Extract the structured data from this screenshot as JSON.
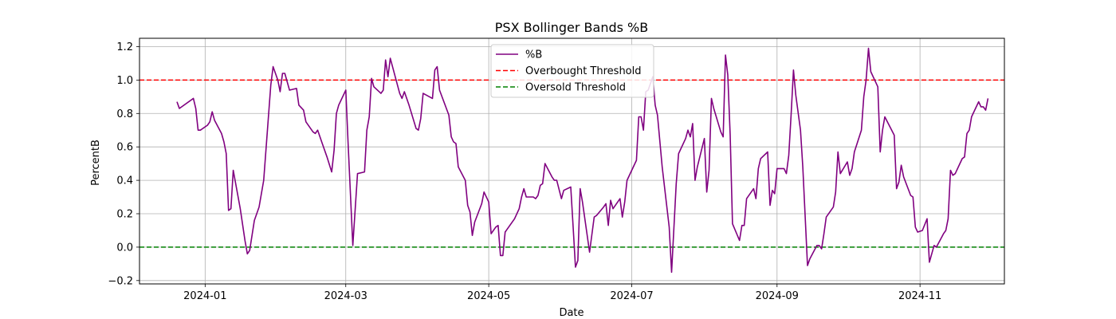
{
  "chart_data": {
    "type": "line",
    "title": "PSX Bollinger Bands %B",
    "xlabel": "Date",
    "ylabel": "PercentB",
    "xlim": [
      "2023-12-04",
      "2024-12-07"
    ],
    "ylim": [
      -0.22,
      1.25
    ],
    "grid": true,
    "legend_position": "top-center",
    "x_ticks": [
      "2024-01",
      "2024-03",
      "2024-05",
      "2024-07",
      "2024-09",
      "2024-11"
    ],
    "y_ticks": [
      -0.2,
      0.0,
      0.2,
      0.4,
      0.6,
      0.8,
      1.0,
      1.2
    ],
    "y_tick_labels": [
      "−0.2",
      "0.0",
      "0.2",
      "0.4",
      "0.6",
      "0.8",
      "1.0",
      "1.2"
    ],
    "series": [
      {
        "name": "%B",
        "color": "#800080",
        "style": "solid",
        "points": [
          [
            "2023-12-20",
            0.87
          ],
          [
            "2023-12-21",
            0.83
          ],
          [
            "2023-12-27",
            0.89
          ],
          [
            "2023-12-28",
            0.83
          ],
          [
            "2023-12-29",
            0.7
          ],
          [
            "2023-12-30",
            0.7
          ],
          [
            "2024-01-02",
            0.73
          ],
          [
            "2024-01-03",
            0.75
          ],
          [
            "2024-01-04",
            0.81
          ],
          [
            "2024-01-05",
            0.76
          ],
          [
            "2024-01-08",
            0.68
          ],
          [
            "2024-01-09",
            0.63
          ],
          [
            "2024-01-10",
            0.56
          ],
          [
            "2024-01-11",
            0.22
          ],
          [
            "2024-01-12",
            0.23
          ],
          [
            "2024-01-13",
            0.46
          ],
          [
            "2024-01-16",
            0.23
          ],
          [
            "2024-01-18",
            0.04
          ],
          [
            "2024-01-19",
            -0.04
          ],
          [
            "2024-01-20",
            -0.02
          ],
          [
            "2024-01-22",
            0.16
          ],
          [
            "2024-01-24",
            0.24
          ],
          [
            "2024-01-26",
            0.4
          ],
          [
            "2024-01-29",
            0.97
          ],
          [
            "2024-01-30",
            1.08
          ],
          [
            "2024-02-01",
            1.0
          ],
          [
            "2024-02-02",
            0.93
          ],
          [
            "2024-02-03",
            1.04
          ],
          [
            "2024-02-04",
            1.04
          ],
          [
            "2024-02-06",
            0.94
          ],
          [
            "2024-02-09",
            0.95
          ],
          [
            "2024-02-10",
            0.85
          ],
          [
            "2024-02-12",
            0.82
          ],
          [
            "2024-02-13",
            0.75
          ],
          [
            "2024-02-16",
            0.69
          ],
          [
            "2024-02-17",
            0.68
          ],
          [
            "2024-02-18",
            0.7
          ],
          [
            "2024-02-20",
            0.62
          ],
          [
            "2024-02-22",
            0.54
          ],
          [
            "2024-02-24",
            0.45
          ],
          [
            "2024-02-25",
            0.58
          ],
          [
            "2024-02-26",
            0.8
          ],
          [
            "2024-02-27",
            0.85
          ],
          [
            "2024-03-01",
            0.94
          ],
          [
            "2024-03-02",
            0.62
          ],
          [
            "2024-03-04",
            0.01
          ],
          [
            "2024-03-06",
            0.44
          ],
          [
            "2024-03-09",
            0.45
          ],
          [
            "2024-03-10",
            0.7
          ],
          [
            "2024-03-11",
            0.78
          ],
          [
            "2024-03-12",
            1.01
          ],
          [
            "2024-03-13",
            0.96
          ],
          [
            "2024-03-16",
            0.92
          ],
          [
            "2024-03-17",
            0.94
          ],
          [
            "2024-03-18",
            1.12
          ],
          [
            "2024-03-19",
            1.02
          ],
          [
            "2024-03-20",
            1.13
          ],
          [
            "2024-03-24",
            0.92
          ],
          [
            "2024-03-25",
            0.89
          ],
          [
            "2024-03-26",
            0.93
          ],
          [
            "2024-03-28",
            0.85
          ],
          [
            "2024-03-31",
            0.71
          ],
          [
            "2024-04-01",
            0.7
          ],
          [
            "2024-04-02",
            0.77
          ],
          [
            "2024-04-03",
            0.92
          ],
          [
            "2024-04-07",
            0.89
          ],
          [
            "2024-04-08",
            1.06
          ],
          [
            "2024-04-09",
            1.08
          ],
          [
            "2024-04-10",
            0.94
          ],
          [
            "2024-04-14",
            0.79
          ],
          [
            "2024-04-15",
            0.66
          ],
          [
            "2024-04-16",
            0.63
          ],
          [
            "2024-04-17",
            0.62
          ],
          [
            "2024-04-18",
            0.48
          ],
          [
            "2024-04-21",
            0.4
          ],
          [
            "2024-04-22",
            0.25
          ],
          [
            "2024-04-23",
            0.21
          ],
          [
            "2024-04-24",
            0.07
          ],
          [
            "2024-04-25",
            0.15
          ],
          [
            "2024-04-28",
            0.26
          ],
          [
            "2024-04-29",
            0.33
          ],
          [
            "2024-05-01",
            0.27
          ],
          [
            "2024-05-02",
            0.08
          ],
          [
            "2024-05-04",
            0.12
          ],
          [
            "2024-05-05",
            0.13
          ],
          [
            "2024-05-06",
            -0.05
          ],
          [
            "2024-05-07",
            -0.05
          ],
          [
            "2024-05-08",
            0.09
          ],
          [
            "2024-05-12",
            0.17
          ],
          [
            "2024-05-14",
            0.23
          ],
          [
            "2024-05-15",
            0.3
          ],
          [
            "2024-05-16",
            0.35
          ],
          [
            "2024-05-17",
            0.3
          ],
          [
            "2024-05-20",
            0.3
          ],
          [
            "2024-05-21",
            0.29
          ],
          [
            "2024-05-22",
            0.31
          ],
          [
            "2024-05-23",
            0.37
          ],
          [
            "2024-05-24",
            0.38
          ],
          [
            "2024-05-25",
            0.5
          ],
          [
            "2024-05-28",
            0.42
          ],
          [
            "2024-05-29",
            0.4
          ],
          [
            "2024-05-30",
            0.4
          ],
          [
            "2024-06-01",
            0.29
          ],
          [
            "2024-06-02",
            0.34
          ],
          [
            "2024-06-05",
            0.36
          ],
          [
            "2024-06-06",
            0.12
          ],
          [
            "2024-06-07",
            -0.12
          ],
          [
            "2024-06-08",
            -0.08
          ],
          [
            "2024-06-09",
            0.35
          ],
          [
            "2024-06-10",
            0.27
          ],
          [
            "2024-06-13",
            -0.03
          ],
          [
            "2024-06-15",
            0.18
          ],
          [
            "2024-06-16",
            0.19
          ],
          [
            "2024-06-19",
            0.24
          ],
          [
            "2024-06-20",
            0.26
          ],
          [
            "2024-06-21",
            0.13
          ],
          [
            "2024-06-22",
            0.28
          ],
          [
            "2024-06-23",
            0.23
          ],
          [
            "2024-06-26",
            0.29
          ],
          [
            "2024-06-27",
            0.18
          ],
          [
            "2024-06-28",
            0.27
          ],
          [
            "2024-06-29",
            0.4
          ],
          [
            "2024-07-03",
            0.52
          ],
          [
            "2024-07-04",
            0.78
          ],
          [
            "2024-07-05",
            0.78
          ],
          [
            "2024-07-06",
            0.7
          ],
          [
            "2024-07-07",
            0.93
          ],
          [
            "2024-07-08",
            0.94
          ],
          [
            "2024-07-10",
            1.02
          ],
          [
            "2024-07-11",
            0.85
          ],
          [
            "2024-07-12",
            0.79
          ],
          [
            "2024-07-14",
            0.48
          ],
          [
            "2024-07-17",
            0.12
          ],
          [
            "2024-07-18",
            -0.15
          ],
          [
            "2024-07-20",
            0.38
          ],
          [
            "2024-07-21",
            0.56
          ],
          [
            "2024-07-24",
            0.65
          ],
          [
            "2024-07-25",
            0.7
          ],
          [
            "2024-07-26",
            0.66
          ],
          [
            "2024-07-27",
            0.74
          ],
          [
            "2024-07-28",
            0.4
          ],
          [
            "2024-07-29",
            0.48
          ],
          [
            "2024-08-01",
            0.65
          ],
          [
            "2024-08-02",
            0.33
          ],
          [
            "2024-08-03",
            0.46
          ],
          [
            "2024-08-04",
            0.89
          ],
          [
            "2024-08-05",
            0.83
          ],
          [
            "2024-08-08",
            0.69
          ],
          [
            "2024-08-09",
            0.66
          ],
          [
            "2024-08-10",
            1.15
          ],
          [
            "2024-08-11",
            1.03
          ],
          [
            "2024-08-12",
            0.67
          ],
          [
            "2024-08-13",
            0.14
          ],
          [
            "2024-08-16",
            0.04
          ],
          [
            "2024-08-17",
            0.13
          ],
          [
            "2024-08-18",
            0.13
          ],
          [
            "2024-08-19",
            0.29
          ],
          [
            "2024-08-22",
            0.35
          ],
          [
            "2024-08-23",
            0.29
          ],
          [
            "2024-08-24",
            0.47
          ],
          [
            "2024-08-25",
            0.53
          ],
          [
            "2024-08-28",
            0.57
          ],
          [
            "2024-08-29",
            0.25
          ],
          [
            "2024-08-30",
            0.34
          ],
          [
            "2024-08-31",
            0.32
          ],
          [
            "2024-09-01",
            0.47
          ],
          [
            "2024-09-04",
            0.47
          ],
          [
            "2024-09-05",
            0.44
          ],
          [
            "2024-09-06",
            0.55
          ],
          [
            "2024-09-07",
            0.79
          ],
          [
            "2024-09-08",
            1.06
          ],
          [
            "2024-09-09",
            0.91
          ],
          [
            "2024-09-11",
            0.7
          ],
          [
            "2024-09-12",
            0.48
          ],
          [
            "2024-09-14",
            -0.11
          ],
          [
            "2024-09-15",
            -0.07
          ],
          [
            "2024-09-18",
            0.01
          ],
          [
            "2024-09-19",
            0.01
          ],
          [
            "2024-09-20",
            -0.01
          ],
          [
            "2024-09-21",
            0.08
          ],
          [
            "2024-09-22",
            0.18
          ],
          [
            "2024-09-25",
            0.24
          ],
          [
            "2024-09-26",
            0.33
          ],
          [
            "2024-09-27",
            0.57
          ],
          [
            "2024-09-28",
            0.44
          ],
          [
            "2024-10-01",
            0.51
          ],
          [
            "2024-10-02",
            0.43
          ],
          [
            "2024-10-03",
            0.47
          ],
          [
            "2024-10-04",
            0.57
          ],
          [
            "2024-10-07",
            0.7
          ],
          [
            "2024-10-08",
            0.9
          ],
          [
            "2024-10-09",
            1.0
          ],
          [
            "2024-10-10",
            1.19
          ],
          [
            "2024-10-11",
            1.05
          ],
          [
            "2024-10-14",
            0.96
          ],
          [
            "2024-10-15",
            0.57
          ],
          [
            "2024-10-16",
            0.7
          ],
          [
            "2024-10-17",
            0.78
          ],
          [
            "2024-10-21",
            0.67
          ],
          [
            "2024-10-22",
            0.35
          ],
          [
            "2024-10-23",
            0.39
          ],
          [
            "2024-10-24",
            0.49
          ],
          [
            "2024-10-25",
            0.42
          ],
          [
            "2024-10-28",
            0.31
          ],
          [
            "2024-10-29",
            0.3
          ],
          [
            "2024-10-30",
            0.12
          ],
          [
            "2024-10-31",
            0.09
          ],
          [
            "2024-11-02",
            0.1
          ],
          [
            "2024-11-04",
            0.17
          ],
          [
            "2024-11-05",
            -0.09
          ],
          [
            "2024-11-07",
            0.01
          ],
          [
            "2024-11-08",
            0.0
          ],
          [
            "2024-11-11",
            0.08
          ],
          [
            "2024-11-12",
            0.1
          ],
          [
            "2024-11-13",
            0.17
          ],
          [
            "2024-11-14",
            0.46
          ],
          [
            "2024-11-15",
            0.43
          ],
          [
            "2024-11-16",
            0.44
          ],
          [
            "2024-11-19",
            0.53
          ],
          [
            "2024-11-20",
            0.54
          ],
          [
            "2024-11-21",
            0.68
          ],
          [
            "2024-11-22",
            0.7
          ],
          [
            "2024-11-23",
            0.78
          ],
          [
            "2024-11-26",
            0.87
          ],
          [
            "2024-11-27",
            0.84
          ],
          [
            "2024-11-28",
            0.84
          ],
          [
            "2024-11-29",
            0.82
          ],
          [
            "2024-11-30",
            0.89
          ]
        ]
      },
      {
        "name": "Overbought Threshold",
        "color": "#ff0000",
        "style": "dashed",
        "y": 1.0
      },
      {
        "name": "Oversold Threshold",
        "color": "#008000",
        "style": "dashed",
        "y": 0.0
      }
    ]
  }
}
